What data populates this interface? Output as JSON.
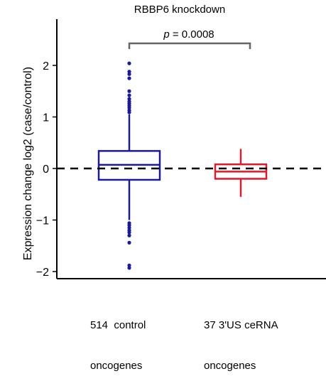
{
  "chart_data": {
    "type": "box",
    "title": "RBBP6 knockdown",
    "ylabel": "Expression change log2 (case/control)",
    "xlabel": "",
    "ylim": [
      -2.12,
      2.9
    ],
    "yticks": [
      -2,
      -1,
      0,
      1,
      2
    ],
    "ytick_labels": [
      "−2",
      "−1",
      "0",
      "1",
      "2"
    ],
    "reference_line": 0,
    "grid": false,
    "categories": [
      {
        "line1": "514  control",
        "line2": "oncogenes"
      },
      {
        "line1": "37 3'US ceRNA",
        "line2": "oncogenes"
      }
    ],
    "boxes": [
      {
        "q1": -0.22,
        "median": 0.07,
        "q3": 0.34,
        "whisker_low": -1.0,
        "whisker_high": 1.05,
        "outliers": [
          2.04,
          1.88,
          1.83,
          1.75,
          1.5,
          1.42,
          1.35,
          1.3,
          1.26,
          1.22,
          1.18,
          1.13,
          1.09,
          -1.06,
          -1.1,
          -1.15,
          -1.2,
          -1.24,
          -1.3,
          -1.44,
          -1.88,
          -1.93
        ],
        "color": "#1a1aa0"
      },
      {
        "q1": -0.2,
        "median": -0.06,
        "q3": 0.08,
        "whisker_low": -0.55,
        "whisker_high": 0.38,
        "outliers": [],
        "color": "#e0182c"
      }
    ],
    "annotation": {
      "prefix": "p",
      "text": " = 0.0008"
    }
  }
}
